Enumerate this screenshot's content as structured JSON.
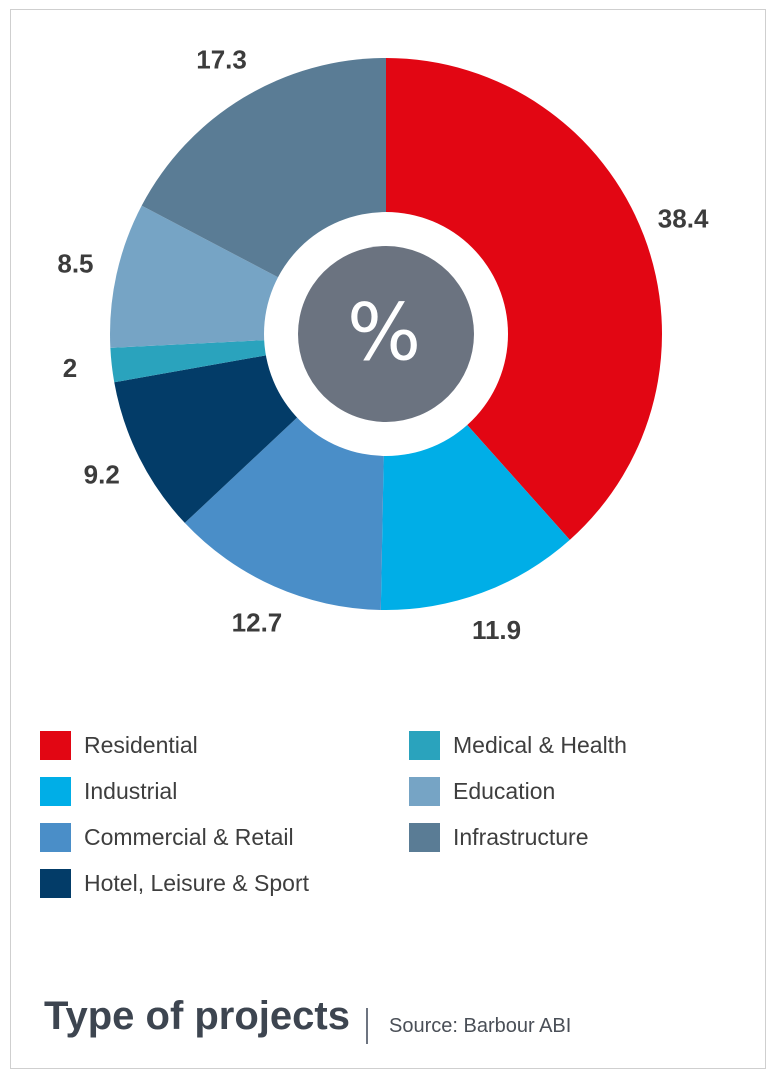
{
  "chart_data": {
    "type": "pie",
    "donut": true,
    "center_label": "%",
    "start_angle_deg": 0,
    "direction": "clockwise",
    "slices": [
      {
        "label": "Residential",
        "value": 38.4,
        "value_label": "38.4",
        "color": "#e20613"
      },
      {
        "label": "Industrial",
        "value": 11.9,
        "value_label": "11.9",
        "color": "#00aee7"
      },
      {
        "label": "Commercial & Retail",
        "value": 12.7,
        "value_label": "12.7",
        "color": "#4a8ec8"
      },
      {
        "label": "Hotel, Leisure & Sport",
        "value": 9.2,
        "value_label": "9.2",
        "color": "#033c68"
      },
      {
        "label": "Medical & Health",
        "value": 2,
        "value_label": "2",
        "color": "#2aa3bd"
      },
      {
        "label": "Education",
        "value": 8.5,
        "value_label": "8.5",
        "color": "#76a4c5"
      },
      {
        "label": "Infrastructure",
        "value": 17.3,
        "value_label": "17.3",
        "color": "#5a7c95"
      }
    ],
    "legend": {
      "placement": "bottom",
      "columns": [
        [
          "Residential",
          "Industrial",
          "Commercial & Retail",
          "Hotel, Leisure & Sport"
        ],
        [
          "Medical & Health",
          "Education",
          "Infrastructure"
        ]
      ]
    },
    "title": "Type of projects",
    "source": "Source: Barbour ABI"
  },
  "colors": {
    "center_circle": "#6b7380",
    "center_text": "#ffffff",
    "value_label_text": "#3c3c3c",
    "frame_border": "#cfcfcf"
  }
}
